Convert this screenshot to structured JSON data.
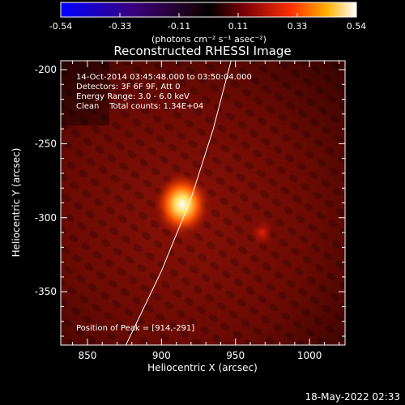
{
  "chart_data": {
    "type": "heatmap",
    "title": "Reconstructed RHESSI Image",
    "xlabel": "Heliocentric X (arcsec)",
    "ylabel": "Heliocentric Y (arcsec)",
    "xlim": [
      832,
      1024
    ],
    "ylim": [
      -386,
      -194
    ],
    "xticks": [
      850,
      900,
      950,
      1000
    ],
    "yticks": [
      -200,
      -250,
      -300,
      -350
    ],
    "colorbar": {
      "min": -0.54,
      "max": 0.54,
      "ticks": [
        "-0.54",
        "-0.33",
        "-0.11",
        "0.11",
        "0.33",
        "0.54"
      ],
      "unit_label": "(photons cm⁻² s⁻¹ asec⁻²)"
    },
    "annotations": [
      "14-Oct-2014 03:45:48.000 to 03:50:04.000",
      "Detectors: 3F 6F 9F, Att 0",
      "Energy Range: 3.0 - 6.0 keV",
      "Clean    Total counts: 1.34E+04"
    ],
    "peak": {
      "x": 914,
      "y": -291,
      "label": "Position of Peak = [914,-291]"
    },
    "sources": [
      {
        "x": 914,
        "y": -291,
        "amplitude": 0.54
      },
      {
        "x": 968,
        "y": -310,
        "amplitude": 0.12
      }
    ],
    "limb_curve": [
      [
        876,
        -386
      ],
      [
        900,
        -336
      ],
      [
        920,
        -287
      ],
      [
        935,
        -240
      ],
      [
        947,
        -194
      ]
    ]
  },
  "footer": {
    "timestamp": "18-May-2022 02:33"
  }
}
